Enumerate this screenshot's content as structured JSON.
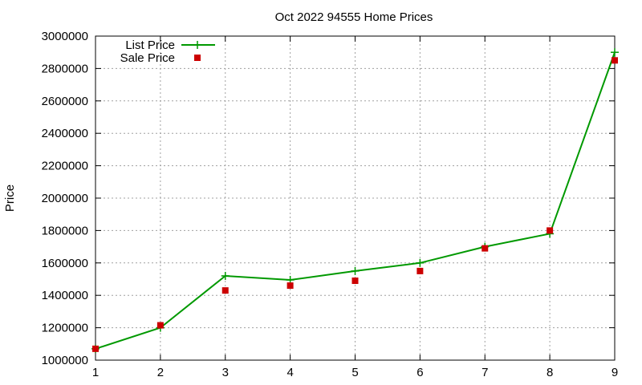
{
  "chart_data": {
    "type": "line",
    "title": "Oct 2022 94555 Home Prices",
    "xlabel": "",
    "ylabel": "Price",
    "x": [
      1,
      2,
      3,
      4,
      5,
      6,
      7,
      8,
      9
    ],
    "xlim": [
      1,
      9
    ],
    "ylim": [
      1000000,
      3000000
    ],
    "xticks": [
      1,
      2,
      3,
      4,
      5,
      6,
      7,
      8,
      9
    ],
    "yticks": [
      1000000,
      1200000,
      1400000,
      1600000,
      1800000,
      2000000,
      2200000,
      2400000,
      2600000,
      2800000,
      3000000
    ],
    "grid": true,
    "legend_position": "top-left",
    "series": [
      {
        "name": "List Price",
        "style": "linespoints",
        "marker": "plus",
        "color": "#009900",
        "values": [
          1070000,
          1200000,
          1520000,
          1495000,
          1550000,
          1600000,
          1700000,
          1780000,
          2900000
        ]
      },
      {
        "name": "Sale Price",
        "style": "points",
        "marker": "square",
        "color": "#cc0000",
        "values": [
          1070000,
          1215000,
          1430000,
          1460000,
          1490000,
          1550000,
          1690000,
          1800000,
          2850000
        ]
      }
    ]
  }
}
